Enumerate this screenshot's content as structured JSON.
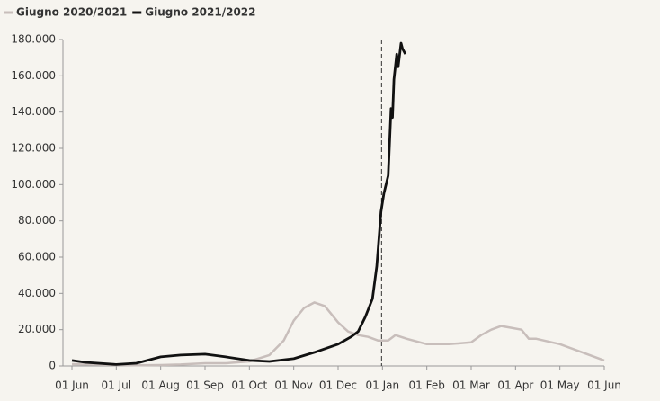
{
  "chart_data": {
    "type": "line",
    "xticks": [
      "01 Jun",
      "01 Jul",
      "01 Aug",
      "01 Sep",
      "01 Oct",
      "01 Nov",
      "01 Dec",
      "01 Jan",
      "01 Feb",
      "01 Mar",
      "01 Apr",
      "01 May",
      "01 Jun"
    ],
    "ylim": [
      0,
      180000
    ],
    "yticks": [
      0,
      {
        "value": 20000,
        "label": "20.000"
      },
      {
        "value": 40000,
        "label": "40.000"
      },
      {
        "value": 60000,
        "label": "60.000"
      },
      {
        "value": 80000,
        "label": "80.000"
      },
      {
        "value": 100000,
        "label": "100.000"
      },
      {
        "value": 120000,
        "label": "120.000"
      },
      {
        "value": 140000,
        "label": "140.000"
      },
      {
        "value": 160000,
        "label": "160.000"
      },
      {
        "value": 180000,
        "label": "180.000"
      }
    ],
    "vline": "01 Jan",
    "series": [
      {
        "name": "Giugno 2020/2021",
        "color": "#c8bebb",
        "x": [
          "01 Jun",
          "15 Jun",
          "01 Jul",
          "15 Jul",
          "01 Aug",
          "15 Aug",
          "01 Sep",
          "15 Sep",
          "01 Oct",
          "15 Oct",
          "25 Oct",
          "01 Nov",
          "08 Nov",
          "15 Nov",
          "22 Nov",
          "01 Dec",
          "08 Dec",
          "15 Dec",
          "22 Dec",
          "29 Dec",
          "05 Jan",
          "10 Jan",
          "18 Jan",
          "01 Feb",
          "15 Feb",
          "01 Mar",
          "08 Mar",
          "15 Mar",
          "22 Mar",
          "29 Mar",
          "05 Apr",
          "10 Apr",
          "15 Apr",
          "01 May",
          "15 May",
          "01 Jun"
        ],
        "values": [
          1000,
          800,
          500,
          400,
          500,
          800,
          1500,
          1500,
          2500,
          6000,
          14000,
          25000,
          32000,
          35000,
          33000,
          24000,
          19000,
          17000,
          16000,
          14000,
          14000,
          17000,
          15000,
          12000,
          12000,
          13000,
          17000,
          20000,
          22000,
          21000,
          20000,
          15000,
          15000,
          12000,
          8000,
          3000
        ]
      },
      {
        "name": "Giugno 2021/2022",
        "color": "#111111",
        "x": [
          "01 Jun",
          "10 Jun",
          "01 Jul",
          "15 Jul",
          "01 Aug",
          "15 Aug",
          "01 Sep",
          "15 Sep",
          "01 Oct",
          "15 Oct",
          "01 Nov",
          "15 Nov",
          "01 Dec",
          "10 Dec",
          "15 Dec",
          "20 Dec",
          "25 Dec",
          "28 Dec",
          "31 Dec",
          "02 Jan",
          "05 Jan",
          "07 Jan",
          "08 Jan",
          "09 Jan",
          "11 Jan",
          "12 Jan",
          "14 Jan",
          "15 Jan",
          "17 Jan"
        ],
        "values": [
          3000,
          2000,
          800,
          1500,
          5000,
          6000,
          6500,
          5000,
          3000,
          2500,
          4000,
          7500,
          12000,
          16000,
          19000,
          27000,
          37000,
          55000,
          85000,
          95000,
          105000,
          142000,
          137000,
          158000,
          172000,
          165000,
          178000,
          175000,
          172000
        ]
      }
    ]
  }
}
